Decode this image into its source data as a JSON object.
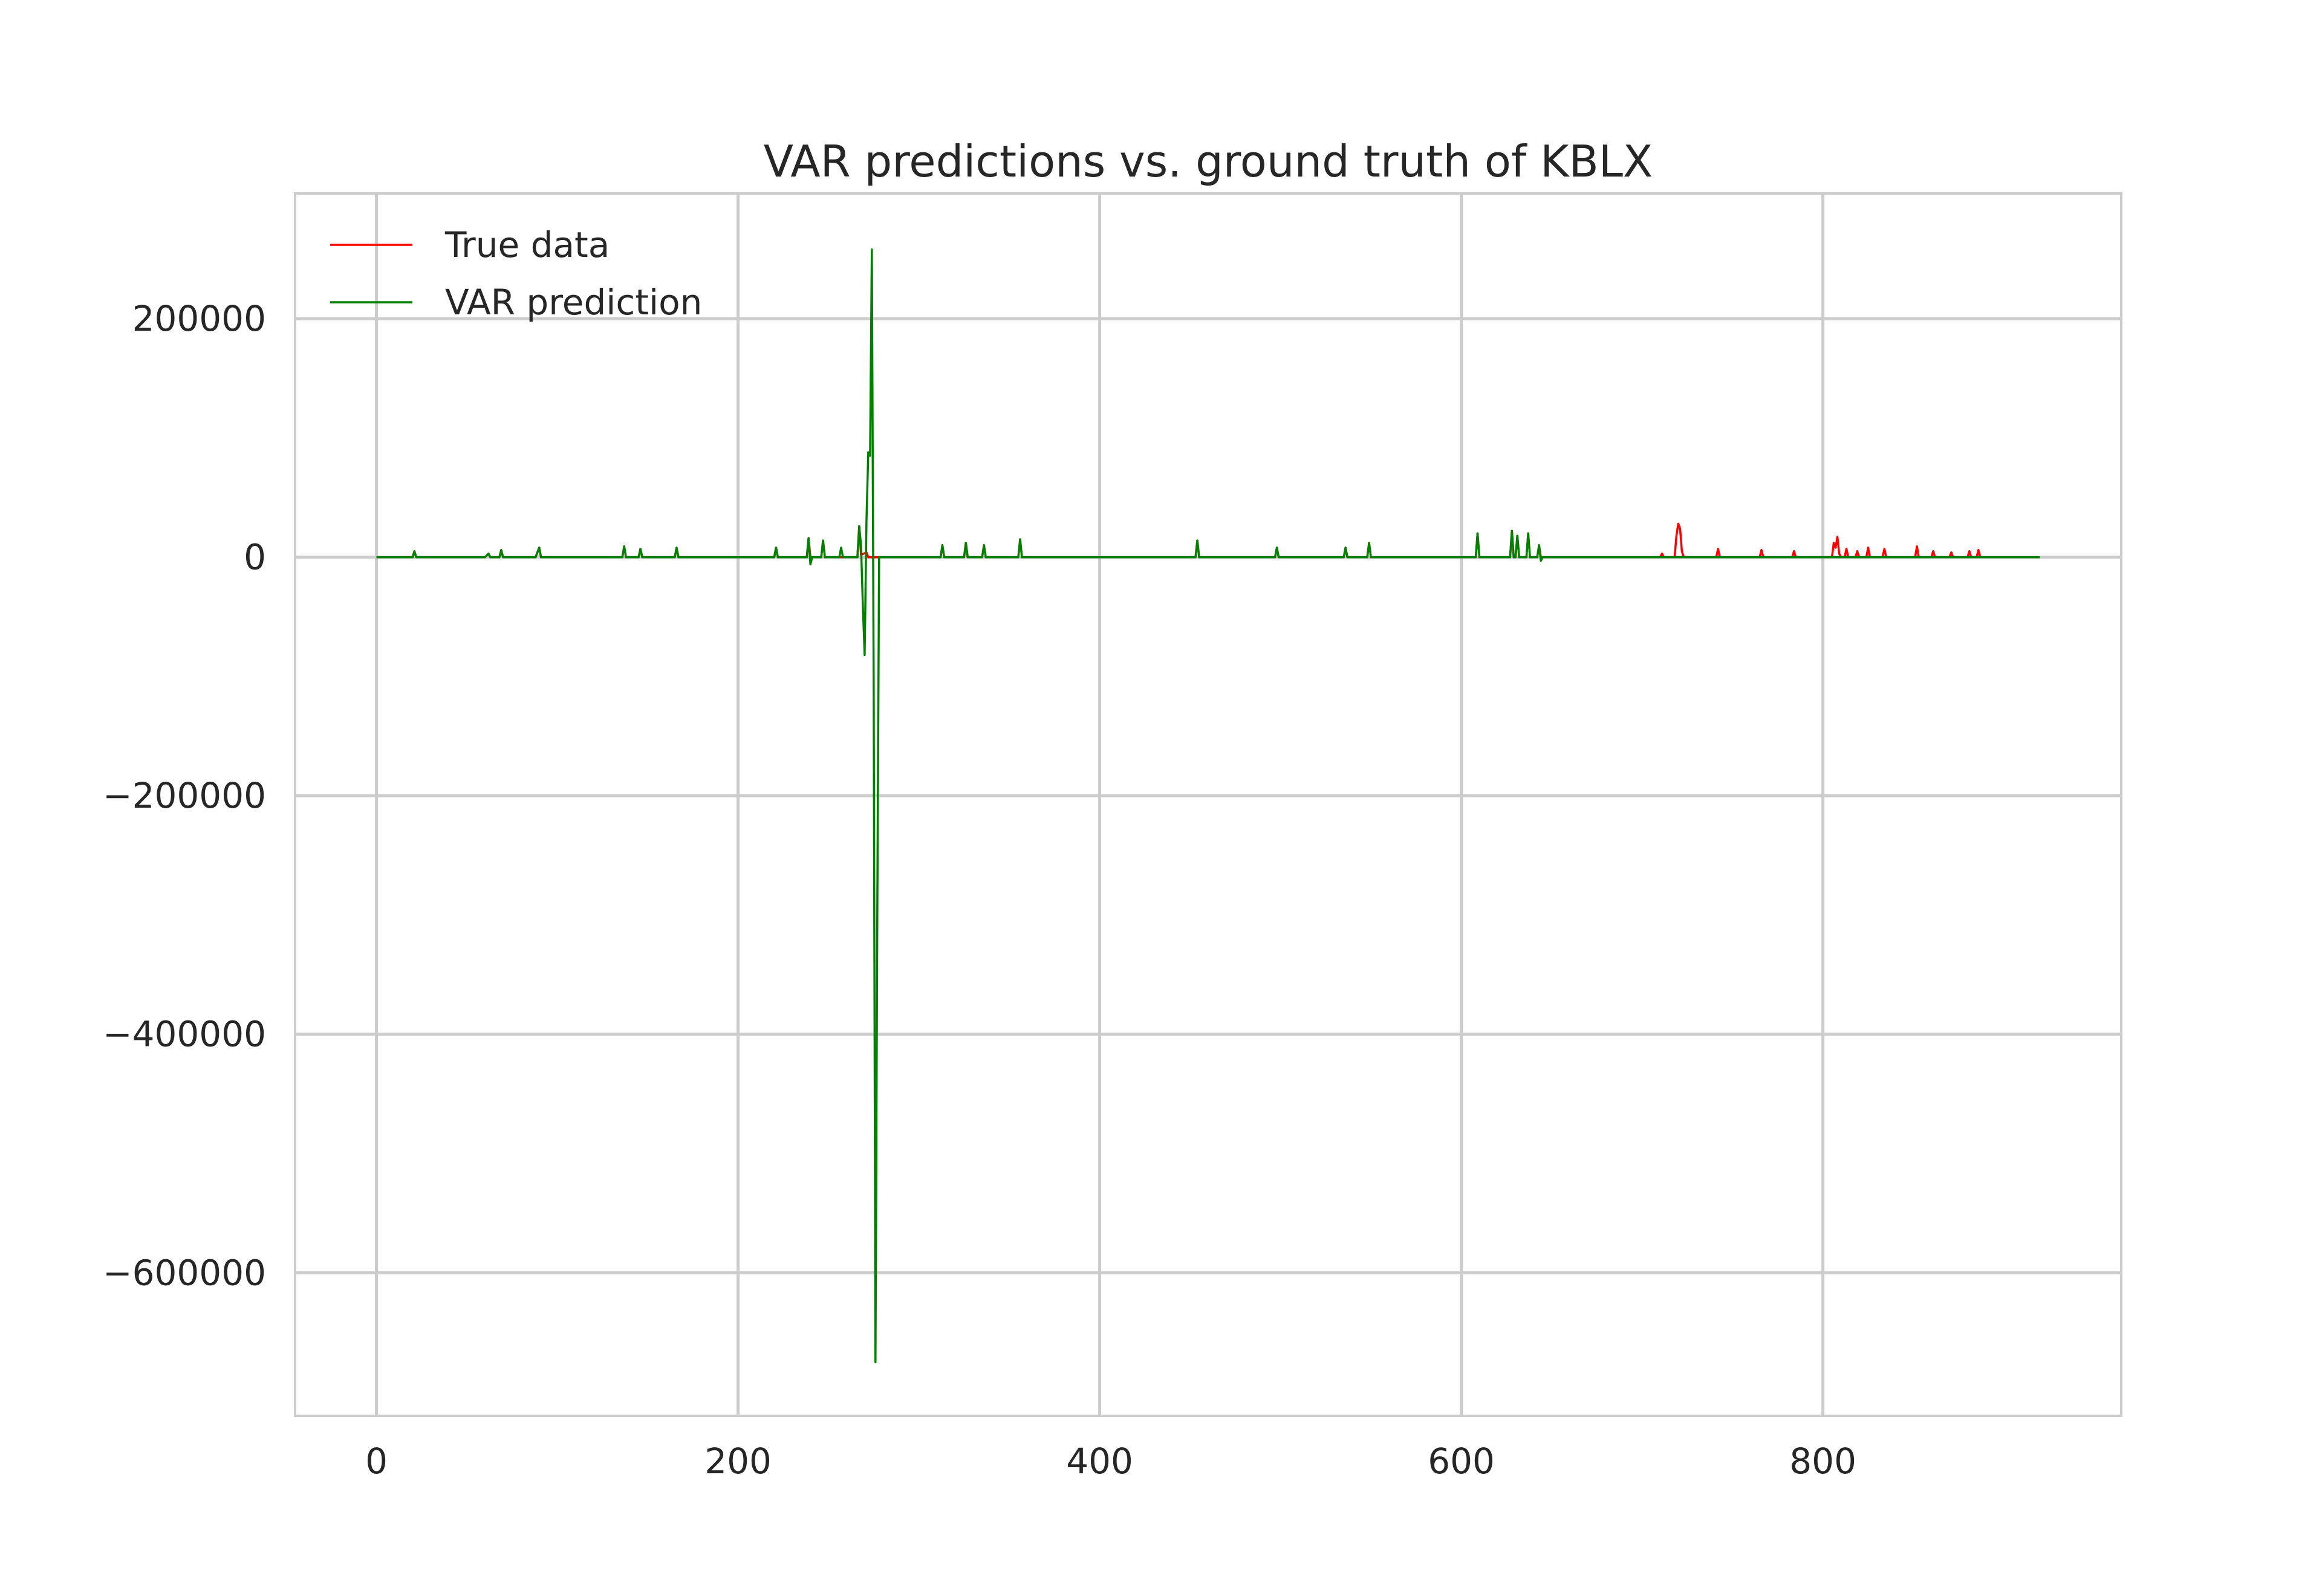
{
  "chart_data": {
    "type": "line",
    "title": "VAR predictions vs. ground truth of KBLX",
    "xlabel": "",
    "ylabel": "",
    "xlim": [
      -45,
      965
    ],
    "ylim": [
      -720000,
      305000
    ],
    "xticks": [
      0,
      200,
      400,
      600,
      800
    ],
    "xtick_labels": [
      "0",
      "200",
      "400",
      "600",
      "800"
    ],
    "yticks": [
      200000,
      0,
      -200000,
      -400000,
      -600000
    ],
    "ytick_labels": [
      "200000",
      "0",
      "−200000",
      "−400000",
      "−600000"
    ],
    "grid": true,
    "legend_position": "upper-left",
    "series": [
      {
        "name": "True data",
        "color": "#ff0000",
        "points": [
          [
            0,
            0
          ],
          [
            20,
            0
          ],
          [
            21,
            5000
          ],
          [
            22,
            0
          ],
          [
            60,
            0
          ],
          [
            62,
            3000
          ],
          [
            63,
            0
          ],
          [
            68,
            0
          ],
          [
            69,
            6000
          ],
          [
            70,
            0
          ],
          [
            88,
            0
          ],
          [
            90,
            8000
          ],
          [
            91,
            0
          ],
          [
            136,
            0
          ],
          [
            137,
            9000
          ],
          [
            138,
            0
          ],
          [
            145,
            0
          ],
          [
            146,
            7000
          ],
          [
            147,
            0
          ],
          [
            165,
            0
          ],
          [
            166,
            8000
          ],
          [
            167,
            0
          ],
          [
            220,
            0
          ],
          [
            221,
            8000
          ],
          [
            222,
            0
          ],
          [
            238,
            0
          ],
          [
            239,
            16000
          ],
          [
            240,
            0
          ],
          [
            246,
            0
          ],
          [
            247,
            14000
          ],
          [
            248,
            0
          ],
          [
            266,
            0
          ],
          [
            267,
            26000
          ],
          [
            268,
            2000
          ],
          [
            271,
            4000
          ],
          [
            272,
            0
          ],
          [
            312,
            0
          ],
          [
            313,
            10000
          ],
          [
            314,
            0
          ],
          [
            325,
            0
          ],
          [
            326,
            12000
          ],
          [
            327,
            0
          ],
          [
            335,
            0
          ],
          [
            336,
            10000
          ],
          [
            337,
            0
          ],
          [
            355,
            0
          ],
          [
            356,
            15000
          ],
          [
            357,
            0
          ],
          [
            453,
            0
          ],
          [
            454,
            14000
          ],
          [
            455,
            0
          ],
          [
            497,
            0
          ],
          [
            498,
            8000
          ],
          [
            499,
            0
          ],
          [
            535,
            0
          ],
          [
            536,
            8000
          ],
          [
            537,
            0
          ],
          [
            548,
            0
          ],
          [
            549,
            12000
          ],
          [
            550,
            0
          ],
          [
            608,
            0
          ],
          [
            609,
            20000
          ],
          [
            610,
            0
          ],
          [
            627,
            0
          ],
          [
            628,
            22000
          ],
          [
            629,
            0
          ],
          [
            630,
            0
          ],
          [
            631,
            18000
          ],
          [
            632,
            0
          ],
          [
            636,
            0
          ],
          [
            637,
            20000
          ],
          [
            638,
            0
          ],
          [
            642,
            0
          ],
          [
            643,
            10000
          ],
          [
            644,
            0
          ],
          [
            710,
            0
          ],
          [
            711,
            3000
          ],
          [
            712,
            0
          ],
          [
            718,
            0
          ],
          [
            719,
            18000
          ],
          [
            720,
            28000
          ],
          [
            721,
            24000
          ],
          [
            722,
            5000
          ],
          [
            723,
            0
          ],
          [
            741,
            0
          ],
          [
            742,
            7000
          ],
          [
            743,
            0
          ],
          [
            765,
            0
          ],
          [
            766,
            6000
          ],
          [
            767,
            0
          ],
          [
            783,
            0
          ],
          [
            784,
            5000
          ],
          [
            785,
            0
          ],
          [
            805,
            0
          ],
          [
            806,
            12000
          ],
          [
            807,
            8000
          ],
          [
            808,
            17000
          ],
          [
            809,
            3000
          ],
          [
            810,
            0
          ],
          [
            812,
            0
          ],
          [
            813,
            7000
          ],
          [
            814,
            0
          ],
          [
            818,
            0
          ],
          [
            819,
            5000
          ],
          [
            820,
            0
          ],
          [
            824,
            0
          ],
          [
            825,
            8000
          ],
          [
            826,
            0
          ],
          [
            833,
            0
          ],
          [
            834,
            7000
          ],
          [
            835,
            0
          ],
          [
            851,
            0
          ],
          [
            852,
            9000
          ],
          [
            853,
            0
          ],
          [
            860,
            0
          ],
          [
            861,
            5000
          ],
          [
            862,
            0
          ],
          [
            870,
            0
          ],
          [
            871,
            4000
          ],
          [
            872,
            0
          ],
          [
            880,
            0
          ],
          [
            881,
            5000
          ],
          [
            882,
            0
          ],
          [
            885,
            0
          ],
          [
            886,
            6000
          ],
          [
            887,
            0
          ],
          [
            920,
            0
          ]
        ]
      },
      {
        "name": "VAR prediction",
        "color": "#008000",
        "points": [
          [
            0,
            0
          ],
          [
            20,
            0
          ],
          [
            21,
            5000
          ],
          [
            22,
            0
          ],
          [
            60,
            0
          ],
          [
            62,
            3000
          ],
          [
            63,
            0
          ],
          [
            68,
            0
          ],
          [
            69,
            6000
          ],
          [
            70,
            0
          ],
          [
            88,
            0
          ],
          [
            90,
            8000
          ],
          [
            91,
            0
          ],
          [
            136,
            0
          ],
          [
            137,
            9000
          ],
          [
            138,
            0
          ],
          [
            145,
            0
          ],
          [
            146,
            7000
          ],
          [
            147,
            0
          ],
          [
            165,
            0
          ],
          [
            166,
            8000
          ],
          [
            167,
            0
          ],
          [
            220,
            0
          ],
          [
            221,
            8000
          ],
          [
            222,
            0
          ],
          [
            238,
            0
          ],
          [
            239,
            16000
          ],
          [
            240,
            -6000
          ],
          [
            241,
            0
          ],
          [
            246,
            0
          ],
          [
            247,
            14000
          ],
          [
            248,
            0
          ],
          [
            256,
            0
          ],
          [
            257,
            8000
          ],
          [
            258,
            0
          ],
          [
            266,
            0
          ],
          [
            267,
            26000
          ],
          [
            268,
            10000
          ],
          [
            269,
            -40000
          ],
          [
            270,
            -82000
          ],
          [
            271,
            30000
          ],
          [
            272,
            88000
          ],
          [
            273,
            85000
          ],
          [
            274,
            258000
          ],
          [
            275,
            -100000
          ],
          [
            276,
            -675000
          ],
          [
            277,
            -300000
          ],
          [
            278,
            0
          ],
          [
            300,
            0
          ],
          [
            312,
            0
          ],
          [
            313,
            10000
          ],
          [
            314,
            0
          ],
          [
            325,
            0
          ],
          [
            326,
            12000
          ],
          [
            327,
            0
          ],
          [
            335,
            0
          ],
          [
            336,
            10000
          ],
          [
            337,
            0
          ],
          [
            355,
            0
          ],
          [
            356,
            15000
          ],
          [
            357,
            0
          ],
          [
            453,
            0
          ],
          [
            454,
            14000
          ],
          [
            455,
            0
          ],
          [
            497,
            0
          ],
          [
            498,
            8000
          ],
          [
            499,
            0
          ],
          [
            535,
            0
          ],
          [
            536,
            8000
          ],
          [
            537,
            0
          ],
          [
            548,
            0
          ],
          [
            549,
            12000
          ],
          [
            550,
            0
          ],
          [
            608,
            0
          ],
          [
            609,
            20000
          ],
          [
            610,
            0
          ],
          [
            627,
            0
          ],
          [
            628,
            22000
          ],
          [
            629,
            0
          ],
          [
            630,
            0
          ],
          [
            631,
            18000
          ],
          [
            632,
            0
          ],
          [
            636,
            0
          ],
          [
            637,
            20000
          ],
          [
            638,
            0
          ],
          [
            642,
            0
          ],
          [
            643,
            10000
          ],
          [
            644,
            -3000
          ],
          [
            645,
            0
          ],
          [
            920,
            0
          ]
        ]
      }
    ]
  }
}
